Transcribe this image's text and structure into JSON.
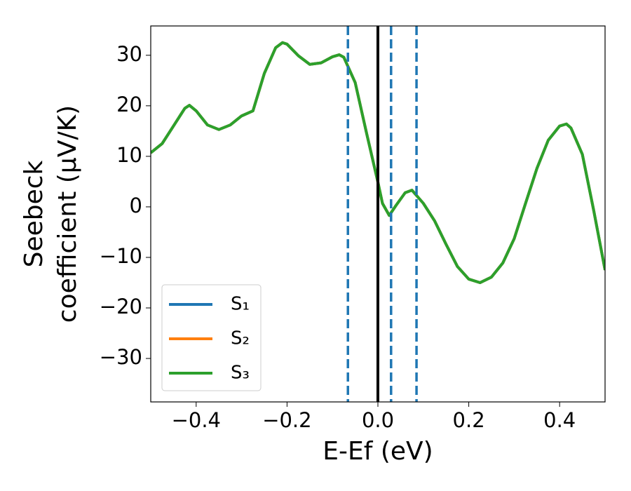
{
  "chart_data": {
    "type": "line",
    "xlabel": "E-Ef (eV)",
    "ylabel": [
      "Seebeck",
      "coefficient  (μV/K)"
    ],
    "xlim": [
      -0.5,
      0.5
    ],
    "ylim": [
      -38.6,
      35.8
    ],
    "xticks": [
      {
        "value": -0.4,
        "label": "−0.4"
      },
      {
        "value": -0.2,
        "label": "−0.2"
      },
      {
        "value": 0,
        "label": "0.0"
      },
      {
        "value": 0.2,
        "label": "0.2"
      },
      {
        "value": 0.4,
        "label": "0.4"
      }
    ],
    "yticks": [
      {
        "value": -30,
        "label": "−30"
      },
      {
        "value": -20,
        "label": "−20"
      },
      {
        "value": -10,
        "label": "−10"
      },
      0,
      10,
      20,
      30
    ],
    "x": [
      -0.5,
      -0.475,
      -0.45,
      -0.425,
      -0.415,
      -0.4,
      -0.375,
      -0.35,
      -0.325,
      -0.3,
      -0.275,
      -0.25,
      -0.225,
      -0.21,
      -0.2,
      -0.175,
      -0.15,
      -0.125,
      -0.1,
      -0.085,
      -0.075,
      -0.05,
      -0.025,
      0,
      0.01,
      0.025,
      0.04,
      0.06,
      0.075,
      0.1,
      0.125,
      0.15,
      0.175,
      0.2,
      0.225,
      0.25,
      0.275,
      0.3,
      0.325,
      0.35,
      0.375,
      0.4,
      0.415,
      0.425,
      0.45,
      0.475,
      0.5
    ],
    "series": [
      {
        "name": "S₁",
        "color": "#1f77b4",
        "values": [
          10.7,
          12.5,
          16,
          19.5,
          20.1,
          19,
          16.2,
          15.3,
          16.2,
          18,
          19,
          26.4,
          31.5,
          32.5,
          32.2,
          29.9,
          28.2,
          28.5,
          29.7,
          30.1,
          29.6,
          24.6,
          14.6,
          4.9,
          0.7,
          -1.7,
          0.3,
          2.8,
          3.3,
          0.7,
          -2.8,
          -7.4,
          -11.8,
          -14.3,
          -15,
          -13.9,
          -11.1,
          -6.3,
          0.7,
          7.6,
          13.2,
          16,
          16.4,
          15.6,
          10.4,
          -0.7,
          -12.5
        ]
      },
      {
        "name": "S₂",
        "color": "#ff7f0e",
        "values": [
          10.7,
          12.5,
          16,
          19.5,
          20.1,
          19,
          16.2,
          15.3,
          16.2,
          18,
          19,
          26.4,
          31.5,
          32.5,
          32.2,
          29.9,
          28.2,
          28.5,
          29.7,
          30.1,
          29.6,
          24.6,
          14.6,
          4.9,
          0.7,
          -1.7,
          0.3,
          2.8,
          3.3,
          0.7,
          -2.8,
          -7.4,
          -11.8,
          -14.3,
          -15,
          -13.9,
          -11.1,
          -6.3,
          0.7,
          7.6,
          13.2,
          16,
          16.4,
          15.6,
          10.4,
          -0.7,
          -12.5
        ]
      },
      {
        "name": "S₃",
        "color": "#2ca02c",
        "values": [
          10.7,
          12.5,
          16,
          19.5,
          20.1,
          19,
          16.2,
          15.3,
          16.2,
          18,
          19,
          26.4,
          31.5,
          32.5,
          32.2,
          29.9,
          28.2,
          28.5,
          29.7,
          30.1,
          29.6,
          24.6,
          14.6,
          4.9,
          0.7,
          -1.7,
          0.3,
          2.8,
          3.3,
          0.7,
          -2.8,
          -7.4,
          -11.8,
          -14.3,
          -15,
          -13.9,
          -11.1,
          -6.3,
          0.7,
          7.6,
          13.2,
          16,
          16.4,
          15.6,
          10.4,
          -0.7,
          -12.5
        ]
      }
    ],
    "vlines": [
      {
        "x": 0,
        "color": "#000000",
        "style": "solid"
      },
      {
        "x": -0.066,
        "color": "#1f77b4",
        "style": "dashed"
      },
      {
        "x": 0.029,
        "color": "#1f77b4",
        "style": "dashed"
      },
      {
        "x": 0.085,
        "color": "#1f77b4",
        "style": "dashed"
      }
    ],
    "legend": "lower left"
  }
}
